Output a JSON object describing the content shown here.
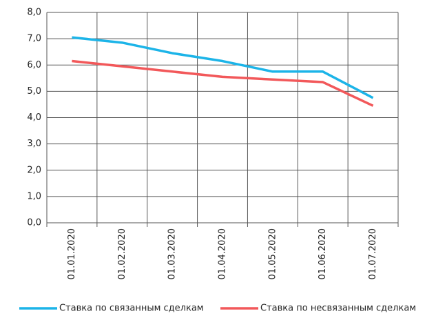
{
  "chart_data": {
    "type": "line",
    "categories": [
      "01.01.2020",
      "01.02.2020",
      "01.03.2020",
      "01.04.2020",
      "01.05.2020",
      "01.06.2020",
      "01.07.2020"
    ],
    "series": [
      {
        "name": "Ставка по связанным сделкам",
        "color": "#1cb4e8",
        "values": [
          7.05,
          6.85,
          6.45,
          6.15,
          5.75,
          5.75,
          4.75
        ]
      },
      {
        "name": "Ставка по несвязанным сделкам",
        "color": "#f2585a",
        "values": [
          6.15,
          5.95,
          5.75,
          5.55,
          5.45,
          5.35,
          4.45
        ]
      }
    ],
    "ylim": [
      0,
      8
    ],
    "yticks": [
      {
        "value": 0,
        "label": "0,0"
      },
      {
        "value": 1,
        "label": "1,0"
      },
      {
        "value": 2,
        "label": "2,0"
      },
      {
        "value": 3,
        "label": "3,0"
      },
      {
        "value": 4,
        "label": "4,0"
      },
      {
        "value": 5,
        "label": "5,0"
      },
      {
        "value": 6,
        "label": "6,0"
      },
      {
        "value": 7,
        "label": "7,0"
      },
      {
        "value": 8,
        "label": "8,0"
      }
    ],
    "grid": true,
    "legend": "bottom"
  }
}
